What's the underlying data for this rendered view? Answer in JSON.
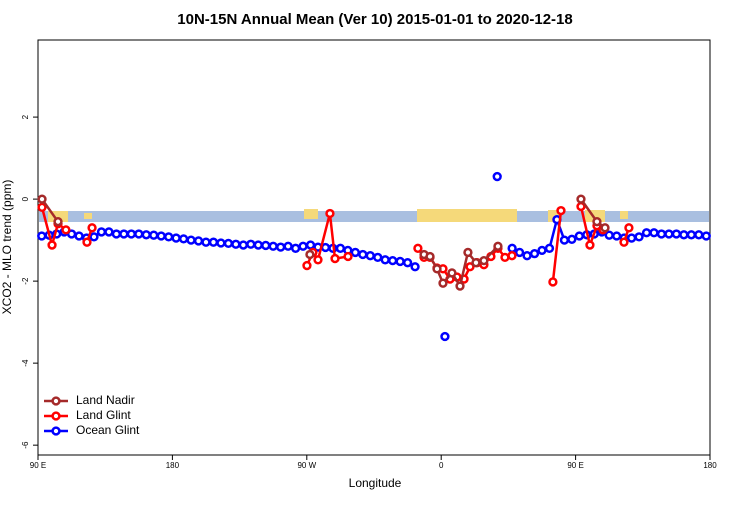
{
  "chart_data": {
    "type": "line",
    "title": "10N-15N Annual Mean (Ver 10)   2015-01-01 to 2020-12-18",
    "x_label": "Longitude",
    "y_label": "XCO2 - MLO trend (ppm)",
    "xlim": [
      90,
      540
    ],
    "xticks": [
      {
        "value": 90,
        "label": "90 E"
      },
      180,
      {
        "value": 270,
        "label": "90 W"
      },
      {
        "value": 360,
        "label": "0"
      },
      {
        "value": 450,
        "label": "90 E"
      },
      {
        "value": 540,
        "label": "180"
      }
    ],
    "ylim": [
      -6.24,
      3.88
    ],
    "yticks": [
      -6,
      -4,
      -2,
      0,
      2
    ],
    "legend": "bottom-left",
    "series": [
      {
        "name": "Land Nadir",
        "color": "#a52a2a",
        "x": [
          92.7,
          103.4,
          null,
          272.1,
          null,
          348.5,
          352.5,
          357.2,
          361.2,
          367.2,
          372.6,
          377.9,
          383.3,
          388.6,
          398,
          null,
          453.6,
          464.3,
          469.7
        ],
        "values": [
          0.0,
          -0.55,
          null,
          -1.35,
          null,
          -1.35,
          -1.4,
          -1.7,
          -2.05,
          -1.8,
          -2.12,
          -1.3,
          -1.55,
          -1.5,
          -1.15,
          null,
          0.0,
          -0.55,
          -0.7
        ]
      },
      {
        "name": "Land Glint",
        "color": "#ff0000",
        "x": [
          92.7,
          99.4,
          103.4,
          108.7,
          null,
          122.8,
          126.2,
          null,
          270.1,
          274.1,
          277.5,
          285.5,
          288.9,
          297.6,
          null,
          344.4,
          348.5,
          352.5,
          357.2,
          361.2,
          365.9,
          370.6,
          375.3,
          379.3,
          384,
          388.6,
          393.3,
          398,
          402.7,
          407.4,
          null,
          434.8,
          440.2,
          null,
          453.6,
          459.6,
          464.3,
          468.3,
          null,
          482.4,
          485.7
        ],
        "values": [
          -0.2,
          -1.12,
          -0.6,
          -0.75,
          null,
          -1.05,
          -0.7,
          null,
          -1.62,
          -1.3,
          -1.48,
          -0.35,
          -1.45,
          -1.4,
          null,
          -1.2,
          -1.42,
          -1.42,
          -1.68,
          -1.7,
          -1.95,
          -1.9,
          -1.95,
          -1.65,
          -1.55,
          -1.6,
          -1.4,
          -1.2,
          -1.42,
          -1.38,
          null,
          -2.02,
          -0.28,
          null,
          -0.18,
          -1.12,
          -0.65,
          -0.75,
          null,
          -1.05,
          -0.7
        ]
      },
      {
        "name": "Ocean Glint",
        "color": "#0000ff",
        "x": [
          92.5,
          97.5,
          102.5,
          107.5,
          112.5,
          117.5,
          122.5,
          127.5,
          132.5,
          137.5,
          142.5,
          147.5,
          152.5,
          157.5,
          162.5,
          167.5,
          172.5,
          177.5,
          182.5,
          187.5,
          192.5,
          197.5,
          202.5,
          207.5,
          212.5,
          217.5,
          222.5,
          227.5,
          232.5,
          237.5,
          242.5,
          247.5,
          252.5,
          257.5,
          262.5,
          267.5,
          272.5,
          277.5,
          282.5,
          287.5,
          292.5,
          297.5,
          302.5,
          307.5,
          312.5,
          317.5,
          322.5,
          327.5,
          332.5,
          337.5,
          342.5,
          null,
          362.5,
          null,
          397.5,
          null,
          407.5,
          412.5,
          417.5,
          422.5,
          427.5,
          432.5,
          437.5,
          442.5,
          447.5,
          452.5,
          457.5,
          462.5,
          467.5,
          472.5,
          477.5,
          482.5,
          487.5,
          492.5,
          497.5,
          502.5,
          507.5,
          512.5,
          517.5,
          522.5,
          527.5,
          532.5,
          537.5
        ],
        "values": [
          -0.9,
          -0.88,
          -0.85,
          -0.8,
          -0.85,
          -0.9,
          -0.95,
          -0.92,
          -0.8,
          -0.8,
          -0.85,
          -0.85,
          -0.85,
          -0.85,
          -0.87,
          -0.88,
          -0.9,
          -0.92,
          -0.95,
          -0.97,
          -1.0,
          -1.02,
          -1.05,
          -1.05,
          -1.07,
          -1.08,
          -1.1,
          -1.12,
          -1.1,
          -1.12,
          -1.13,
          -1.15,
          -1.17,
          -1.15,
          -1.2,
          -1.15,
          -1.12,
          -1.17,
          -1.18,
          -1.2,
          -1.2,
          -1.25,
          -1.3,
          -1.35,
          -1.38,
          -1.42,
          -1.48,
          -1.5,
          -1.52,
          -1.55,
          -1.65,
          null,
          -3.35,
          null,
          0.55,
          null,
          -1.2,
          -1.3,
          -1.38,
          -1.33,
          -1.25,
          -1.2,
          -0.5,
          -1.0,
          -0.98,
          -0.9,
          -0.87,
          -0.85,
          -0.8,
          -0.88,
          -0.9,
          -0.95,
          -0.95,
          -0.92,
          -0.82,
          -0.82,
          -0.85,
          -0.85,
          -0.85,
          -0.87,
          -0.87,
          -0.87,
          -0.9
        ]
      }
    ]
  }
}
